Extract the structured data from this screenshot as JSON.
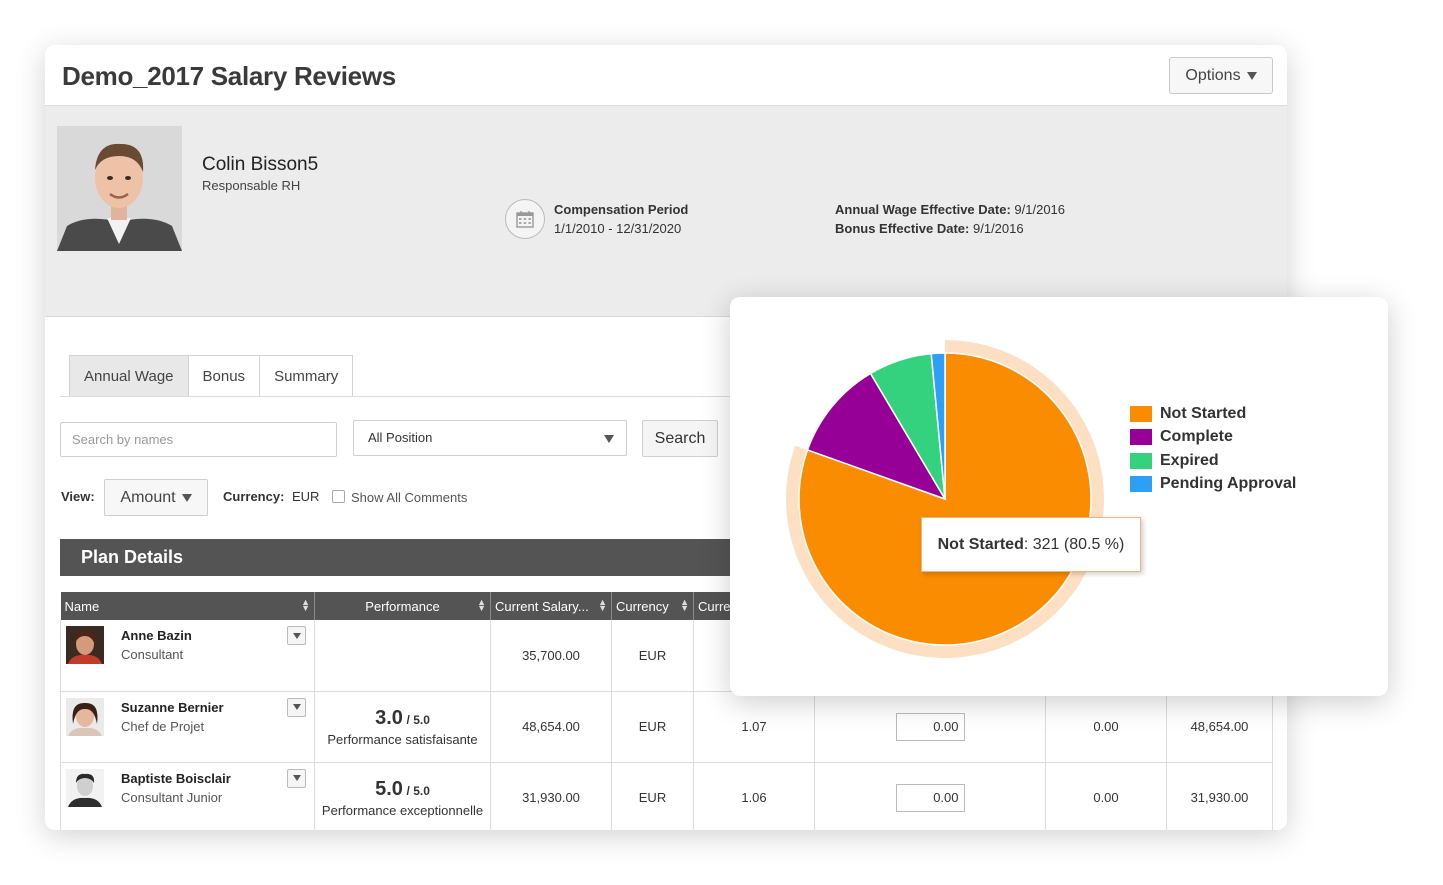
{
  "header": {
    "title": "Demo_2017 Salary Reviews",
    "options_label": "Options"
  },
  "profile": {
    "name": "Colin Bisson5",
    "role": "Responsable RH",
    "comp_period_label": "Compensation Period",
    "comp_period_value": "1/1/2010 - 12/31/2020",
    "annual_wage_label": "Annual Wage Effective Date:",
    "annual_wage_value": "9/1/2016",
    "bonus_label": "Bonus Effective Date:",
    "bonus_value": "9/1/2016"
  },
  "tabs": [
    {
      "label": "Annual Wage",
      "active": true
    },
    {
      "label": "Bonus",
      "active": false
    },
    {
      "label": "Summary",
      "active": false
    }
  ],
  "filters": {
    "search_placeholder": "Search by names",
    "position_value": "All Position",
    "search_button": "Search",
    "view_label": "View:",
    "view_value": "Amount",
    "currency_label": "Currency:",
    "currency_value": "EUR",
    "show_comments_label": "Show All Comments"
  },
  "plan": {
    "title": "Plan Details",
    "columns": [
      "Name",
      "Performance",
      "Current Salary...",
      "Currency",
      "Curre"
    ],
    "rows": [
      {
        "name": "Anne Bazin",
        "title": "Consultant",
        "score": "",
        "score_max": "",
        "perf_text": "",
        "salary": "35,700.00",
        "currency": "EUR",
        "ratio": "",
        "input": "",
        "col7": "",
        "col8": ""
      },
      {
        "name": "Suzanne Bernier",
        "title": "Chef de Projet",
        "score": "3.0",
        "score_max": "/ 5.0",
        "perf_text": "Performance satisfaisante",
        "salary": "48,654.00",
        "currency": "EUR",
        "ratio": "1.07",
        "input": "0.00",
        "col7": "0.00",
        "col8": "48,654.00"
      },
      {
        "name": "Baptiste Boisclair",
        "title": "Consultant Junior",
        "score": "5.0",
        "score_max": "/ 5.0",
        "perf_text": "Performance exceptionnelle",
        "salary": "31,930.00",
        "currency": "EUR",
        "ratio": "1.06",
        "input": "0.00",
        "col7": "0.00",
        "col8": "31,930.00"
      }
    ]
  },
  "chart_data": {
    "type": "pie",
    "categories": [
      "Not Started",
      "Complete",
      "Expired",
      "Pending Approval"
    ],
    "values": [
      321,
      44,
      28,
      6
    ],
    "colors": [
      "#f98c00",
      "#960096",
      "#34d27e",
      "#2d9ff4"
    ],
    "legend_position": "right",
    "tooltip": {
      "label": "Not Started",
      "text": ": 321 (80.5 %)"
    }
  }
}
